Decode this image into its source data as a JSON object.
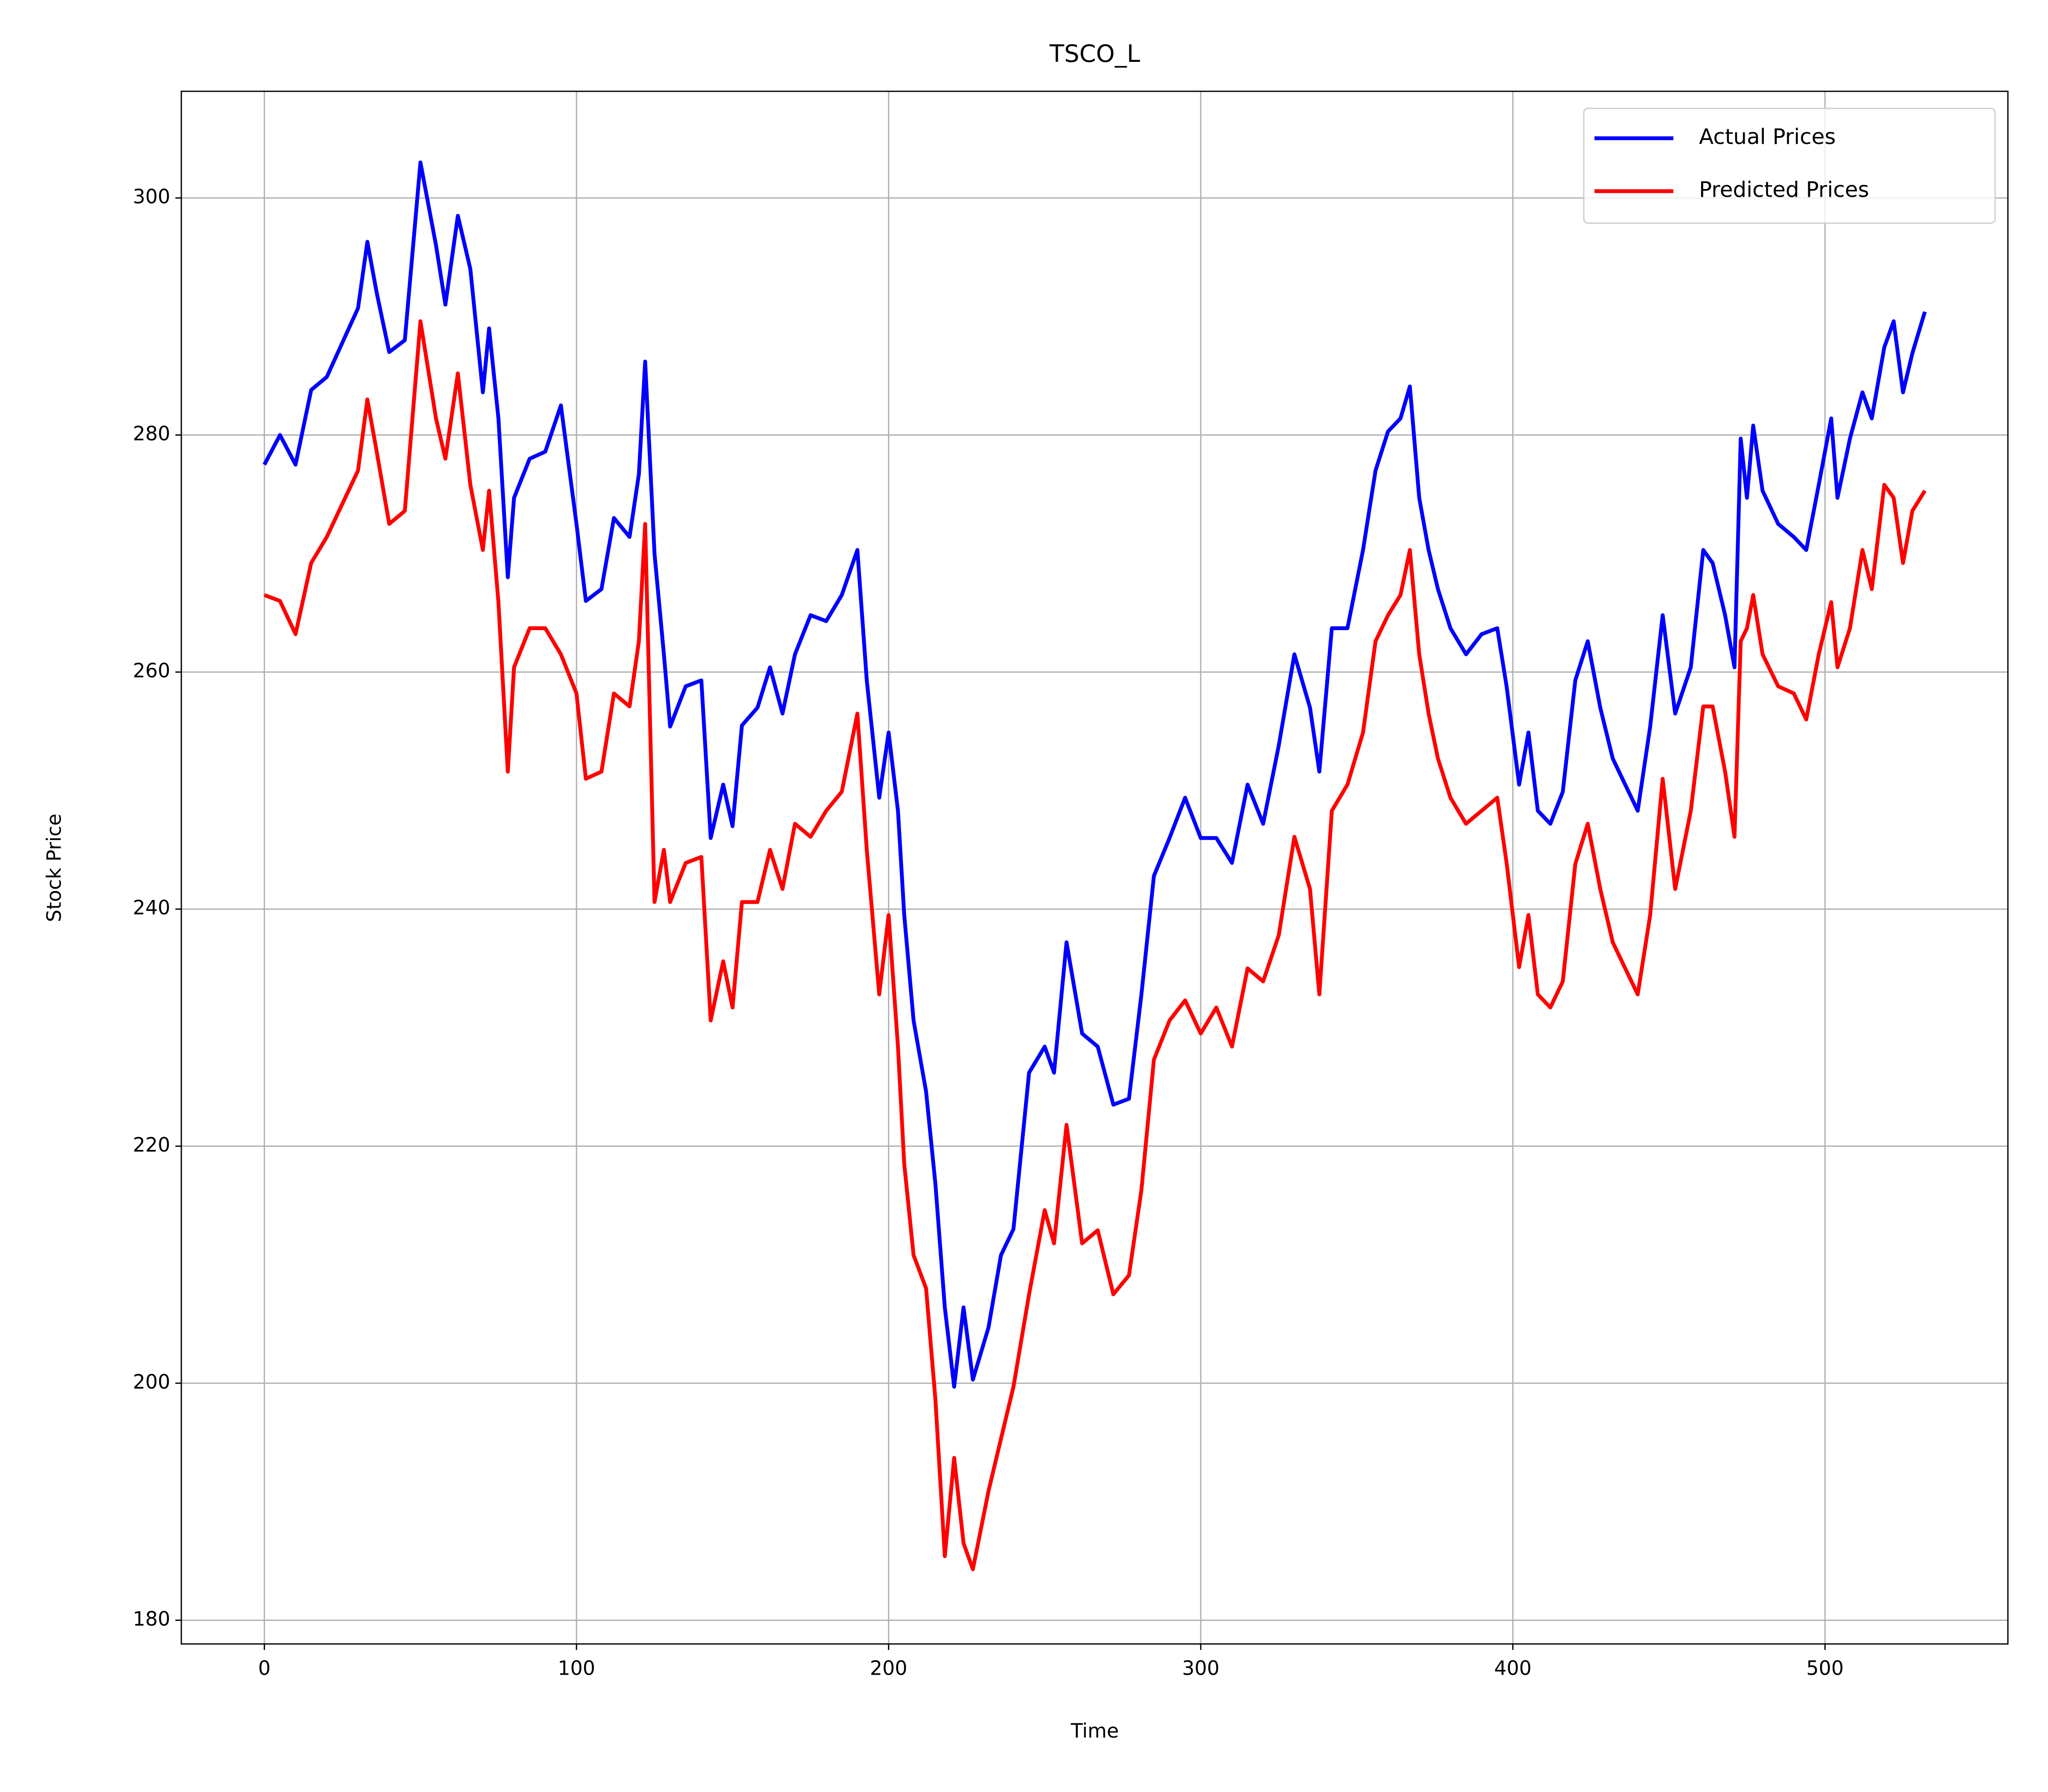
{
  "chart_data": {
    "type": "line",
    "title": "TSCO_L",
    "x_label": "Time",
    "y_label": "Stock Price",
    "x": [
      0,
      5,
      10,
      15,
      20,
      25,
      30,
      33,
      36,
      40,
      45,
      50,
      55,
      58,
      62,
      66,
      70,
      72,
      75,
      78,
      80,
      85,
      90,
      95,
      100,
      103,
      108,
      112,
      117,
      120,
      122,
      125,
      128,
      130,
      135,
      140,
      143,
      147,
      150,
      153,
      158,
      162,
      166,
      170,
      175,
      180,
      185,
      190,
      193,
      197,
      200,
      203,
      205,
      208,
      212,
      215,
      218,
      221,
      224,
      227,
      232,
      236,
      240,
      245,
      250,
      253,
      257,
      262,
      267,
      272,
      277,
      281,
      285,
      290,
      295,
      300,
      305,
      310,
      315,
      320,
      325,
      330,
      335,
      338,
      342,
      347,
      352,
      356,
      360,
      364,
      367,
      370,
      373,
      376,
      380,
      385,
      390,
      395,
      398,
      402,
      405,
      408,
      412,
      416,
      420,
      424,
      428,
      432,
      436,
      440,
      444,
      448,
      452,
      457,
      461,
      464,
      468,
      471,
      473,
      475,
      477,
      480,
      485,
      490,
      494,
      498,
      502,
      504,
      508,
      512,
      515,
      519,
      522,
      525,
      528,
      532
    ],
    "series": [
      {
        "name": "Actual Prices",
        "color": "#0000ff",
        "values": [
          277.5,
          280,
          277.5,
          283.8,
          284.9,
          287.8,
          290.7,
          296.3,
          292,
          287,
          288,
          303,
          296,
          291,
          298.5,
          294,
          283.6,
          289,
          281.4,
          268,
          274.7,
          278,
          278.6,
          282.5,
          272.5,
          266,
          267,
          273,
          271.4,
          276.7,
          286.2,
          270,
          261.5,
          255.4,
          258.8,
          259.3,
          246,
          250.5,
          247,
          255.5,
          257,
          260.4,
          256.5,
          261.5,
          264.8,
          264.3,
          266.5,
          270.3,
          259.3,
          249.4,
          254.9,
          248.3,
          239.5,
          230.6,
          224.6,
          216.8,
          206.4,
          199.7,
          206.4,
          200.3,
          204.7,
          210.8,
          213,
          226.2,
          228.4,
          226.2,
          237.2,
          229.5,
          228.4,
          223.5,
          224,
          232.8,
          242.8,
          246,
          249.4,
          246,
          246,
          243.9,
          250.5,
          247.2,
          253.8,
          261.5,
          257,
          251.6,
          263.7,
          263.7,
          270.3,
          277,
          280.3,
          281.4,
          284.1,
          274.7,
          270.3,
          267,
          263.7,
          261.5,
          263.2,
          263.7,
          258.8,
          250.5,
          254.9,
          248.3,
          247.2,
          249.9,
          259.3,
          262.6,
          257,
          252.7,
          250.5,
          248.3,
          255.4,
          264.8,
          256.5,
          260.4,
          270.3,
          269.2,
          264.8,
          260.4,
          279.7,
          274.7,
          280.8,
          275.3,
          272.5,
          271.4,
          270.3,
          275.8,
          281.4,
          274.7,
          279.7,
          283.6,
          281.4,
          287.4,
          289.6,
          283.6,
          286.9,
          290.4
        ]
      },
      {
        "name": "Predicted Prices",
        "color": "#ff0000",
        "values": [
          266.5,
          266,
          263.2,
          269.2,
          271.4,
          274.2,
          277,
          283,
          278.6,
          272.5,
          273.6,
          289.6,
          281.4,
          278,
          285.2,
          275.8,
          270.3,
          275.3,
          265.9,
          251.6,
          260.4,
          263.7,
          263.7,
          261.5,
          258.2,
          251,
          251.6,
          258.2,
          257.1,
          262.6,
          272.5,
          240.6,
          245,
          240.6,
          243.9,
          244.4,
          230.6,
          235.6,
          231.7,
          240.6,
          240.6,
          245,
          241.7,
          247.2,
          246.1,
          248.3,
          249.9,
          256.5,
          245,
          232.8,
          239.5,
          228.4,
          218.5,
          210.8,
          208,
          198.6,
          185.4,
          193.7,
          186.5,
          184.3,
          190.9,
          195.3,
          199.7,
          207.5,
          214.6,
          211.8,
          221.8,
          211.8,
          212.9,
          207.5,
          209.1,
          216.3,
          227.3,
          230.6,
          232.3,
          229.5,
          231.7,
          228.4,
          235,
          233.9,
          237.8,
          246.1,
          241.7,
          232.8,
          248.3,
          250.5,
          254.9,
          262.6,
          264.8,
          266.5,
          270.3,
          261.5,
          256.5,
          252.7,
          249.4,
          247.2,
          248.3,
          249.4,
          243.9,
          235.1,
          239.5,
          232.8,
          231.7,
          233.9,
          243.8,
          247.2,
          241.7,
          237.2,
          235,
          232.8,
          239.5,
          251,
          241.7,
          248.3,
          257.1,
          257.1,
          251.6,
          246.1,
          262.6,
          263.7,
          266.5,
          261.5,
          258.8,
          258.2,
          256,
          261.5,
          265.9,
          260.4,
          263.7,
          270.3,
          267,
          275.8,
          274.7,
          269.2,
          273.6,
          275.3
        ]
      }
    ],
    "xlim": [
      -26.6,
      558.6
    ],
    "ylim": [
      178,
      309
    ],
    "xticks": [
      0,
      100,
      200,
      300,
      400,
      500
    ],
    "yticks": [
      180,
      200,
      220,
      240,
      260,
      280,
      300
    ],
    "grid": true,
    "legend": "upper right"
  }
}
